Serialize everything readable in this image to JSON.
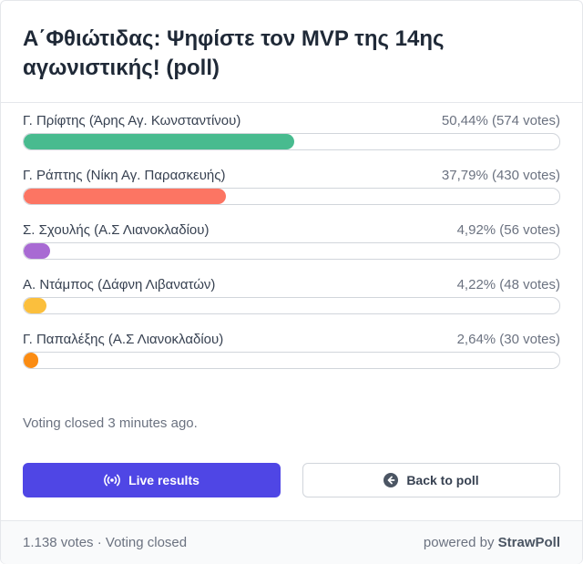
{
  "poll": {
    "title": "Α΄Φθιώτιδας: Ψηφίστε τον MVP της 14ης αγωνιστικής! (poll)"
  },
  "options": [
    {
      "label": "Γ. Πρίφτης (Άρης Αγ. Κωνσταντίνου)",
      "stats": "50,44% (574 votes)",
      "percent": 50.44,
      "color": "#48bb8f"
    },
    {
      "label": "Γ. Ράπτης (Νίκη Αγ. Παρασκευής)",
      "stats": "37,79% (430 votes)",
      "percent": 37.79,
      "color": "#fc7563"
    },
    {
      "label": "Σ. Σχουλής (Α.Σ Λιανοκλαδίου)",
      "stats": "4,92% (56 votes)",
      "percent": 4.92,
      "color": "#a86ad3"
    },
    {
      "label": "Α. Ντάμπος (Δάφνη Λιβανατών)",
      "stats": "4,22% (48 votes)",
      "percent": 4.22,
      "color": "#fbbf3d"
    },
    {
      "label": "Γ. Παπαλέξης (Α.Σ Λιανοκλαδίου)",
      "stats": "2,64% (30 votes)",
      "percent": 2.64,
      "color": "#fb8c13"
    }
  ],
  "status": {
    "closed_note": "Voting closed 3 minutes ago."
  },
  "buttons": {
    "live_results": "Live results",
    "live_icon": "broadcast-icon",
    "back_to_poll": "Back to poll",
    "back_icon": "arrow-left-circle-icon"
  },
  "footer": {
    "summary": "1.138 votes · Voting closed",
    "powered_by": "powered by",
    "brand": "StrawPoll"
  }
}
